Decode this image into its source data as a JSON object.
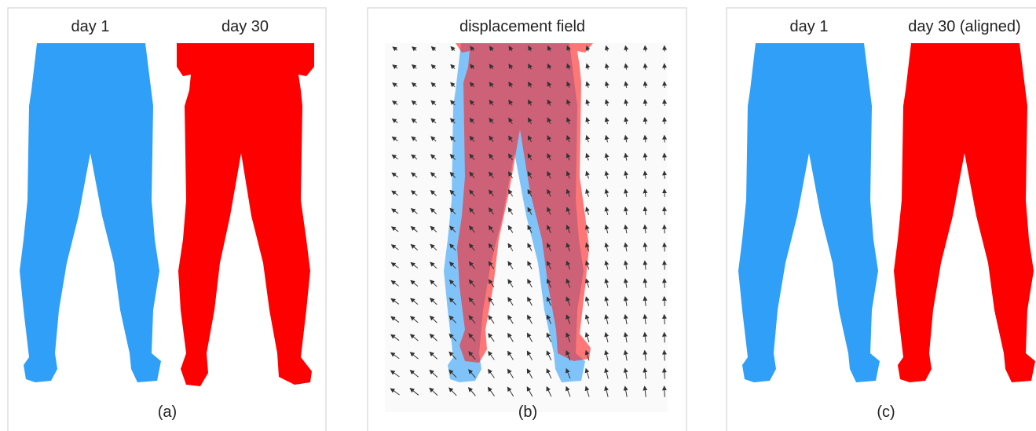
{
  "panels": [
    {
      "titles": [
        "day 1",
        "day 30"
      ],
      "caption": "(a)"
    },
    {
      "titles": [
        "displacement field"
      ],
      "caption": "(b)"
    },
    {
      "titles": [
        "day 1",
        "day 30 (aligned)"
      ],
      "caption": "(c)"
    }
  ]
}
